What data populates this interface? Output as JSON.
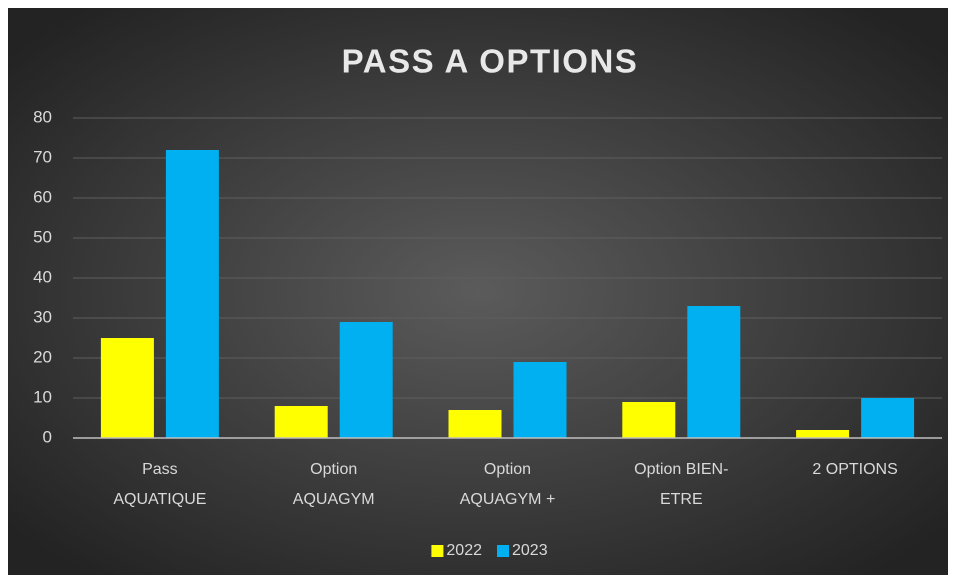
{
  "chart_data": {
    "type": "bar",
    "title": "PASS A OPTIONS",
    "categories": [
      "Pass AQUATIQUE",
      "Option AQUAGYM",
      "Option AQUAGYM +",
      "Option BIEN-ETRE",
      "2 OPTIONS"
    ],
    "series": [
      {
        "name": "2022",
        "color": "#ffff00",
        "values": [
          25,
          8,
          7,
          9,
          2
        ]
      },
      {
        "name": "2023",
        "color": "#00b0f0",
        "values": [
          72,
          29,
          19,
          33,
          10
        ]
      }
    ],
    "ylim": [
      0,
      80
    ],
    "yticks": [
      0,
      10,
      20,
      30,
      40,
      50,
      60,
      70,
      80
    ],
    "grid": true,
    "legend": "bottom"
  }
}
